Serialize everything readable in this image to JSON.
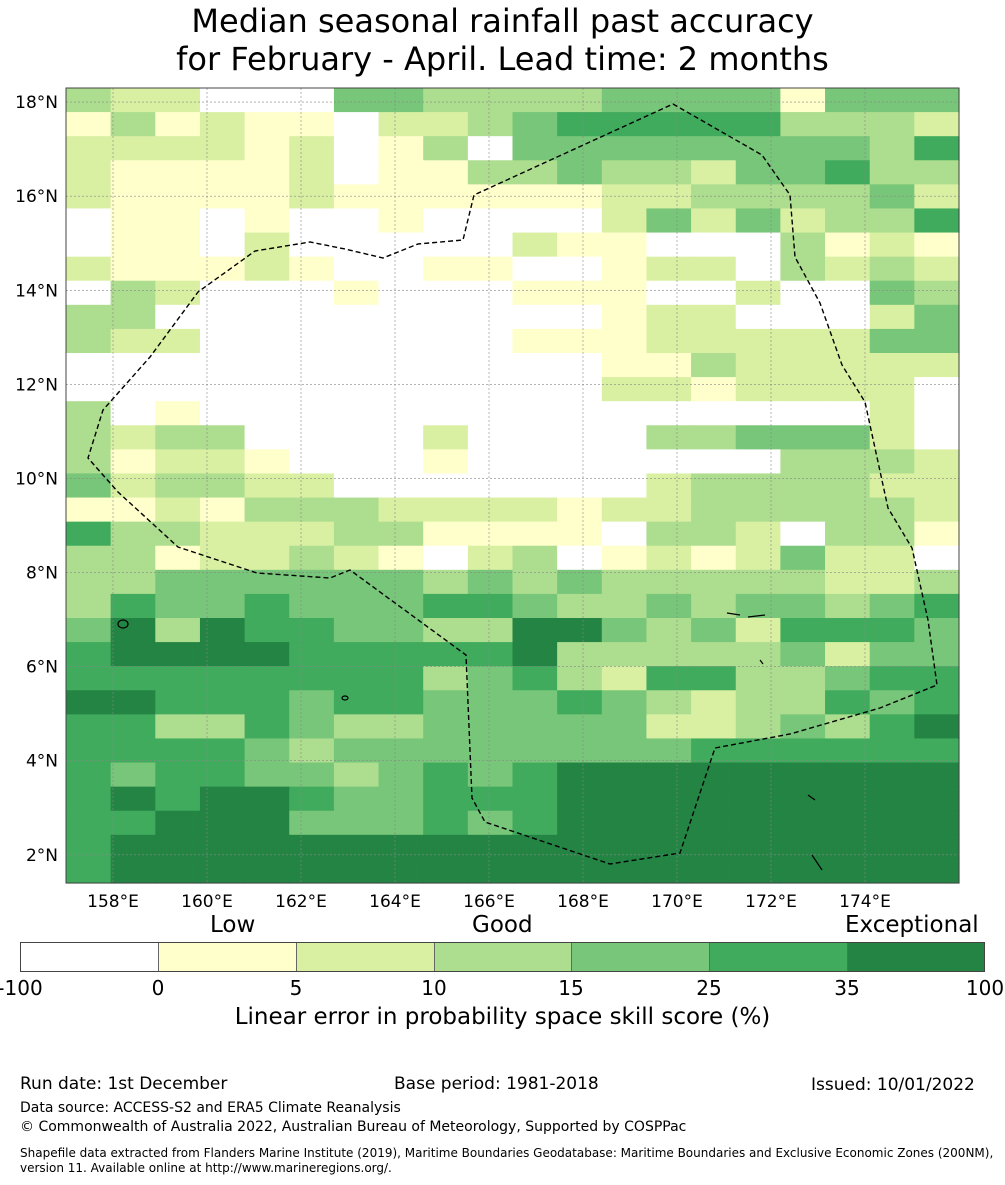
{
  "title": {
    "line1": "Median seasonal rainfall past accuracy",
    "line2": "for February - April. Lead time: 2 months"
  },
  "map": {
    "lat_labels": [
      "18°N",
      "16°N",
      "14°N",
      "12°N",
      "10°N",
      "8°N",
      "6°N",
      "4°N",
      "2°N"
    ],
    "lat_values": [
      18,
      16,
      14,
      12,
      10,
      8,
      6,
      4,
      2
    ],
    "lon_labels": [
      "158°E",
      "160°E",
      "162°E",
      "164°E",
      "166°E",
      "168°E",
      "170°E",
      "172°E",
      "174°E"
    ],
    "lon_values": [
      158,
      160,
      162,
      164,
      166,
      168,
      170,
      172,
      174
    ],
    "extent": {
      "lon_min": 157.0,
      "lon_max": 176.0,
      "lat_min": 1.4,
      "lat_max": 18.3
    },
    "grid_rows_north_to_south": [
      "32200044333344441444",
      "13121102234555553332",
      "22221201304444444435",
      "21111201133433244533",
      "21111211111122333342",
      "01101001000024242335",
      "01102000002110003121",
      "21112100110012203232",
      "03200010001110020043",
      "33000000000012200024",
      "32200000001112222244",
      "00000000000011322222",
      "00000000000022122220",
      "30100000000000000020",
      "32330000200003344420",
      "31221000100000003332",
      "42332200000002333322",
      "11213332222122333332",
      "53322233111103320331",
      "33122321023012124220",
      "33444444343433333223",
      "35445444554334344345",
      "46365544336643425554",
      "56666555556333334244",
      "55555555345325533455",
      "66555455444543233545",
      "55335433444442234356",
      "55554344444444555555",
      "54554434545666666666",
      "56566544555666666666",
      "55666444545666666666",
      "56666666666666666666",
      "56666666666666666666"
    ]
  },
  "colorbar": {
    "categories": [
      "Low",
      "Good",
      "Exceptional"
    ],
    "colors": [
      "#ffffff",
      "#ffffcc",
      "#d9f0a3",
      "#addd8e",
      "#78c679",
      "#41ab5d",
      "#238443"
    ],
    "ticks": [
      "-100",
      "0",
      "5",
      "10",
      "15",
      "25",
      "35",
      "100"
    ],
    "label": "Linear error in probability space skill score (%)"
  },
  "footer": {
    "run_date": "Run date: 1st December",
    "base_period": "Base period: 1981-2018",
    "issued": "Issued: 10/01/2022",
    "data_source": "Data source: ACCESS-S2 and ERA5 Climate Reanalysis",
    "copyright": "© Commonwealth of Australia 2022, Australian Bureau of Meteorology, Supported by COSPPac",
    "shapefile": "Shapefile data extracted from Flanders Marine Institute (2019), Maritime Boundaries Geodatabase: Maritime Boundaries and Exclusive Economic Zones (200NM), version 11. Available online at http://www.marineregions.org/."
  }
}
